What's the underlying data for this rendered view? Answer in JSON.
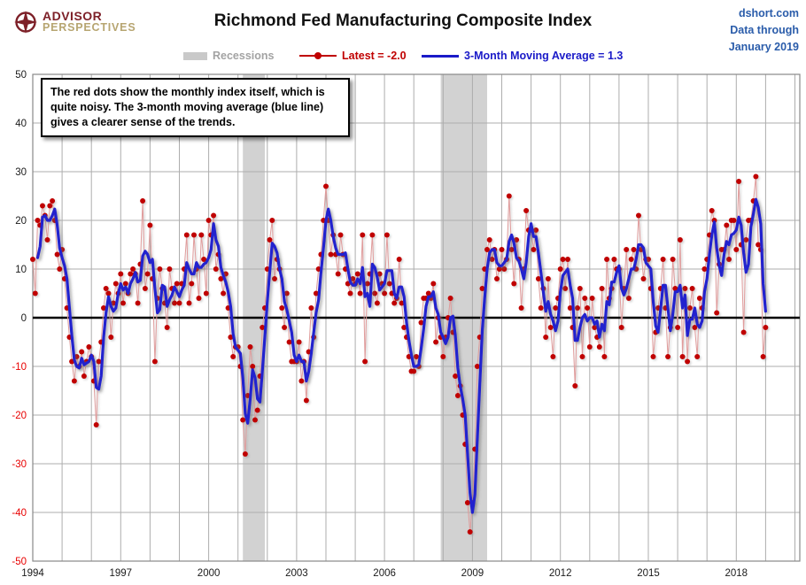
{
  "header": {
    "logo": {
      "line1": "ADVISOR",
      "line2": "PERSPECTIVES"
    },
    "title": "Richmond Fed Manufacturing Composite Index",
    "source": {
      "line1": "dshort.com",
      "line2": "Data through",
      "line3": "January 2019"
    }
  },
  "legend": {
    "recessions_label": "Recessions",
    "latest_label": "Latest = -2.0",
    "ma_label": "3-Month Moving Average = 1.3"
  },
  "annotation": "The red dots show the monthly  index itself, which is quite noisy. The 3-month moving average (blue line) gives a clearer sense of the trends.",
  "chart_data": {
    "type": "line",
    "title": "Richmond Fed Manufacturing Composite Index",
    "start_month": "1994-01",
    "end_month": "2019-01",
    "frequency": "monthly",
    "latest": -2.0,
    "ma3_latest": 1.3,
    "ylim": [
      -50,
      50
    ],
    "y_ticks": [
      50,
      40,
      30,
      20,
      10,
      0,
      -10,
      -20,
      -30,
      -40,
      -50
    ],
    "x_ticks": [
      "1994",
      "1997",
      "2000",
      "2003",
      "2006",
      "2009",
      "2012",
      "2015",
      "2018"
    ],
    "grid": true,
    "legend_position": "top",
    "recessions": [
      {
        "start": "2001-03",
        "end": "2001-11"
      },
      {
        "start": "2007-12",
        "end": "2009-06"
      }
    ],
    "series": [
      {
        "name": "Monthly composite index (red dots)",
        "values": [
          12,
          5,
          20,
          19,
          23,
          21,
          16,
          23,
          24,
          20,
          13,
          10,
          14,
          8,
          2,
          -4,
          -9,
          -13,
          -8,
          -10,
          -7,
          -12,
          -9,
          -6,
          -8,
          -13,
          -22,
          -9,
          -5,
          2,
          6,
          5,
          -4,
          3,
          7,
          5,
          9,
          3,
          7,
          5,
          9,
          10,
          9,
          3,
          11,
          24,
          6,
          9,
          19,
          8,
          -9,
          4,
          10,
          6,
          3,
          -2,
          10,
          6,
          3,
          7,
          3,
          7,
          10,
          17,
          3,
          7,
          17,
          10,
          4,
          17,
          12,
          5,
          20,
          17,
          21,
          10,
          13,
          8,
          5,
          9,
          2,
          -4,
          -8,
          -6,
          -6,
          -10,
          -21,
          -28,
          -16,
          -6,
          -10,
          -21,
          -19,
          -12,
          -2,
          2,
          10,
          16,
          20,
          8,
          12,
          10,
          2,
          -2,
          5,
          -5,
          -9,
          -9,
          -9,
          -5,
          -13,
          -9,
          -17,
          -7,
          2,
          -4,
          5,
          10,
          13,
          20,
          27,
          20,
          13,
          17,
          13,
          9,
          17,
          13,
          10,
          7,
          5,
          8,
          7,
          9,
          5,
          17,
          -9,
          7,
          9,
          17,
          5,
          3,
          9,
          7,
          5,
          17,
          7,
          5,
          3,
          4,
          12,
          3,
          -2,
          -4,
          -8,
          -11,
          -11,
          -8,
          -10,
          -1,
          4,
          4,
          5,
          4,
          7,
          -5,
          0,
          -4,
          -8,
          -4,
          0,
          4,
          -3,
          -12,
          -16,
          -14,
          -20,
          -26,
          -38,
          -44,
          -38,
          -27,
          -10,
          -4,
          6,
          10,
          14,
          16,
          12,
          14,
          8,
          10,
          14,
          10,
          12,
          25,
          14,
          7,
          16,
          12,
          2,
          10,
          22,
          18,
          18,
          14,
          18,
          8,
          2,
          6,
          -4,
          8,
          -2,
          -8,
          2,
          4,
          10,
          12,
          6,
          12,
          2,
          -2,
          -14,
          2,
          6,
          -8,
          4,
          2,
          -6,
          4,
          -2,
          -4,
          -6,
          6,
          -8,
          12,
          4,
          6,
          12,
          10,
          10,
          -2,
          6,
          14,
          4,
          12,
          14,
          10,
          21,
          14,
          8,
          12,
          12,
          6,
          -8,
          -3,
          2,
          6,
          12,
          2,
          -8,
          -2,
          12,
          6,
          -2,
          16,
          -8,
          6,
          -9,
          2,
          6,
          -2,
          -8,
          4,
          2,
          10,
          12,
          17,
          22,
          20,
          1,
          11,
          14,
          14,
          19,
          12,
          20,
          20,
          14,
          28,
          15,
          -3,
          16,
          20,
          20,
          24,
          29,
          15,
          14,
          -8,
          -2
        ]
      },
      {
        "name": "3-Month Moving Average",
        "derived": "3-month trailing moving average of the monthly values"
      }
    ],
    "colors": {
      "dot": "#C00000",
      "dot_line": "#E09C9C",
      "ma": "#2121CE",
      "recession": "#D2D2D2",
      "grid": "#ADADAD",
      "border": "#888888",
      "zero_line": "#000000",
      "tick_pos": "#1a1a1a",
      "tick_neg": "#E80000"
    }
  }
}
